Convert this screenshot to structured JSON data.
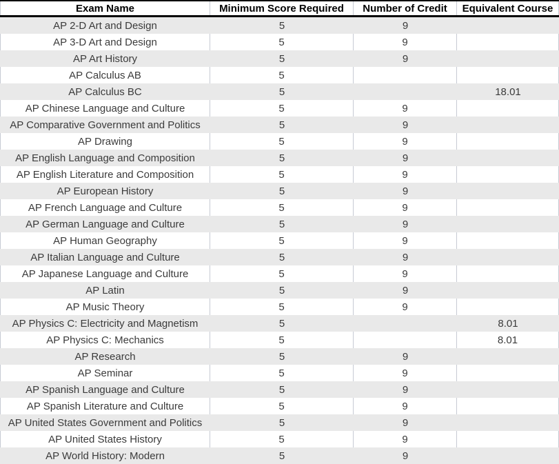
{
  "table": {
    "columns": [
      {
        "label": "Exam Name"
      },
      {
        "label": "Minimum Score Required"
      },
      {
        "label": "Number of Credit"
      },
      {
        "label": "Equivalent Course"
      }
    ],
    "rows": [
      {
        "exam": "AP 2-D Art and Design",
        "min_score": "5",
        "credits": "9",
        "equivalent": ""
      },
      {
        "exam": "AP 3-D Art and Design",
        "min_score": "5",
        "credits": "9",
        "equivalent": ""
      },
      {
        "exam": "AP Art History",
        "min_score": "5",
        "credits": "9",
        "equivalent": ""
      },
      {
        "exam": "AP Calculus AB",
        "min_score": "5",
        "credits": "",
        "equivalent": ""
      },
      {
        "exam": "AP Calculus BC",
        "min_score": "5",
        "credits": "",
        "equivalent": "18.01"
      },
      {
        "exam": "AP Chinese Language and Culture",
        "min_score": "5",
        "credits": "9",
        "equivalent": ""
      },
      {
        "exam": "AP Comparative Government and Politics",
        "min_score": "5",
        "credits": "9",
        "equivalent": ""
      },
      {
        "exam": "AP Drawing",
        "min_score": "5",
        "credits": "9",
        "equivalent": ""
      },
      {
        "exam": "AP English Language and Composition",
        "min_score": "5",
        "credits": "9",
        "equivalent": ""
      },
      {
        "exam": "AP English Literature and Composition",
        "min_score": "5",
        "credits": "9",
        "equivalent": ""
      },
      {
        "exam": "AP European History",
        "min_score": "5",
        "credits": "9",
        "equivalent": ""
      },
      {
        "exam": "AP French Language and Culture",
        "min_score": "5",
        "credits": "9",
        "equivalent": ""
      },
      {
        "exam": "AP German Language and Culture",
        "min_score": "5",
        "credits": "9",
        "equivalent": ""
      },
      {
        "exam": "AP Human Geography",
        "min_score": "5",
        "credits": "9",
        "equivalent": ""
      },
      {
        "exam": "AP Italian Language and Culture",
        "min_score": "5",
        "credits": "9",
        "equivalent": ""
      },
      {
        "exam": "AP Japanese Language and Culture",
        "min_score": "5",
        "credits": "9",
        "equivalent": ""
      },
      {
        "exam": "AP Latin",
        "min_score": "5",
        "credits": "9",
        "equivalent": ""
      },
      {
        "exam": "AP Music Theory",
        "min_score": "5",
        "credits": "9",
        "equivalent": ""
      },
      {
        "exam": "AP Physics C: Electricity and Magnetism",
        "min_score": "5",
        "credits": "",
        "equivalent": "8.01"
      },
      {
        "exam": "AP Physics C: Mechanics",
        "min_score": "5",
        "credits": "",
        "equivalent": "8.01"
      },
      {
        "exam": "AP Research",
        "min_score": "5",
        "credits": "9",
        "equivalent": ""
      },
      {
        "exam": "AP Seminar",
        "min_score": "5",
        "credits": "9",
        "equivalent": ""
      },
      {
        "exam": "AP Spanish Language and Culture",
        "min_score": "5",
        "credits": "9",
        "equivalent": ""
      },
      {
        "exam": "AP Spanish Literature and Culture",
        "min_score": "5",
        "credits": "9",
        "equivalent": ""
      },
      {
        "exam": "AP United States Government and Politics",
        "min_score": "5",
        "credits": "9",
        "equivalent": ""
      },
      {
        "exam": "AP United States History",
        "min_score": "5",
        "credits": "9",
        "equivalent": ""
      },
      {
        "exam": "AP World History: Modern",
        "min_score": "5",
        "credits": "9",
        "equivalent": ""
      }
    ]
  },
  "colors": {
    "row_band": "#e9e9e9",
    "gridline": "#c6cad3",
    "header_border": "#000000",
    "header_text": "#000000",
    "body_text": "#3b3b3b"
  }
}
